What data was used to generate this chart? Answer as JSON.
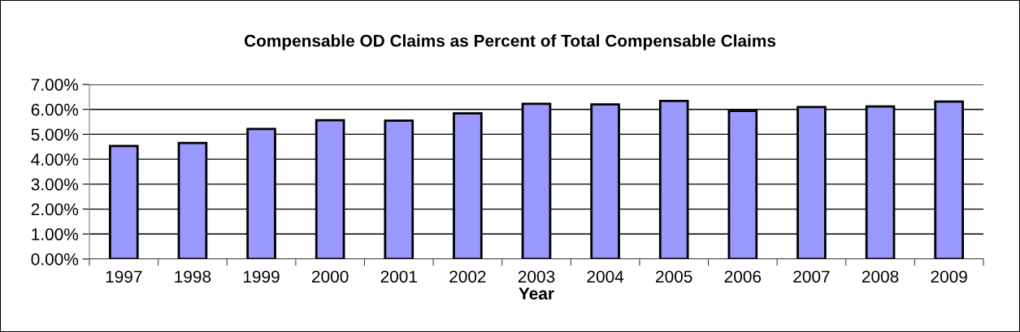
{
  "chart_data": {
    "type": "bar",
    "title": "Compensable OD Claims as Percent of Total Compensable Claims",
    "xlabel": "Year",
    "categories": [
      "1997",
      "1998",
      "1999",
      "2000",
      "2001",
      "2002",
      "2003",
      "2004",
      "2005",
      "2006",
      "2007",
      "2008",
      "2009"
    ],
    "values": [
      4.53,
      4.65,
      5.21,
      5.56,
      5.55,
      5.84,
      6.22,
      6.2,
      6.34,
      5.94,
      6.09,
      6.12,
      6.31
    ],
    "color": "#9999ff",
    "ylim": [
      0,
      7
    ],
    "yticks": [
      {
        "value": 0,
        "label": "0.00%"
      },
      {
        "value": 1,
        "label": "1.00%"
      },
      {
        "value": 2,
        "label": "2.00%"
      },
      {
        "value": 3,
        "label": "3.00%"
      },
      {
        "value": 4,
        "label": "4.00%"
      },
      {
        "value": 5,
        "label": "5.00%"
      },
      {
        "value": 6,
        "label": "6.00%"
      },
      {
        "value": 7,
        "label": "7.00%"
      }
    ],
    "grid": "y",
    "legend": false
  }
}
